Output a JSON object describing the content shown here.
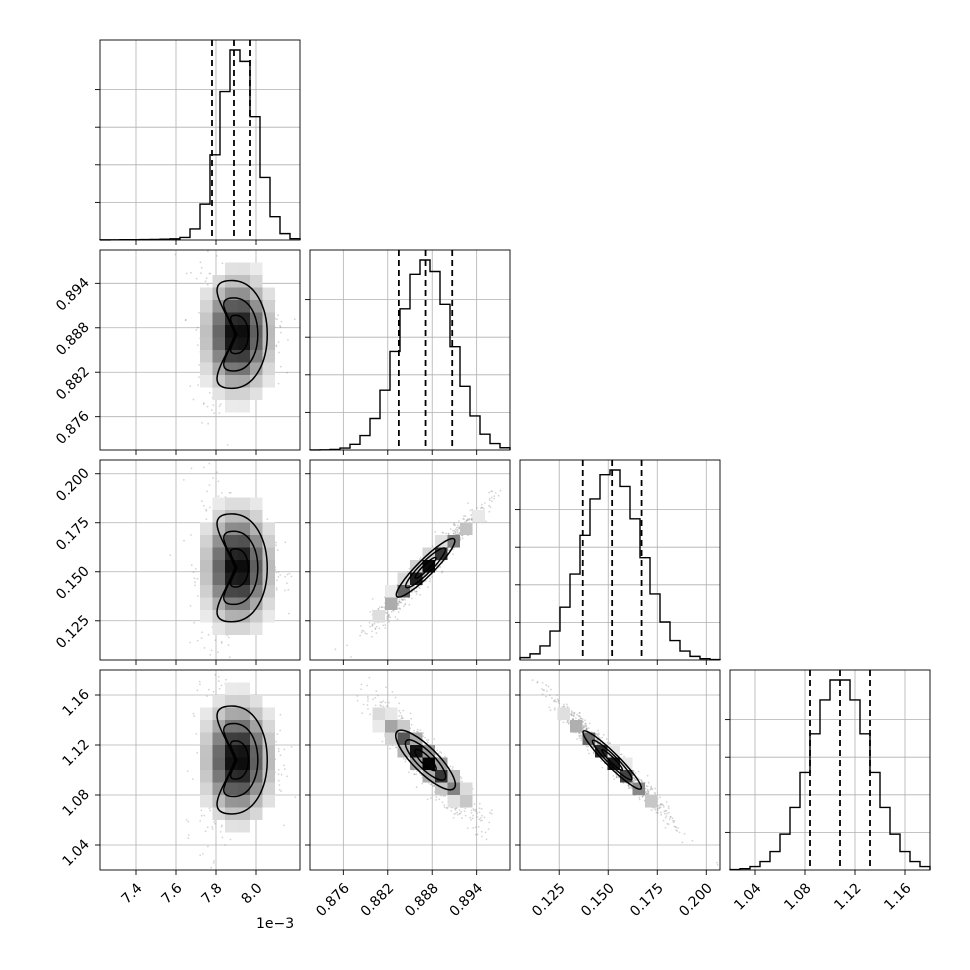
{
  "chart_data": {
    "type": "corner",
    "x_offset_label": "1e−3",
    "parameters": [
      {
        "index": 0,
        "range": [
          7.22,
          8.22
        ],
        "ticks": [
          7.4,
          7.6,
          7.8,
          8.0
        ],
        "tick_labels": [
          "7.4",
          "7.6",
          "7.8",
          "8.0"
        ],
        "quantiles": [
          7.78,
          7.89,
          7.97
        ],
        "mean": 7.91,
        "sd": 0.09,
        "skew": -5
      },
      {
        "index": 1,
        "range": [
          0.8715,
          0.8985
        ],
        "ticks": [
          0.876,
          0.882,
          0.888,
          0.894
        ],
        "tick_labels": [
          "0.876",
          "0.882",
          "0.888",
          "0.894"
        ],
        "quantiles": [
          0.8835,
          0.8871,
          0.8907
        ],
        "mean": 0.8871,
        "sd": 0.0036,
        "skew": 0
      },
      {
        "index": 2,
        "range": [
          0.105,
          0.207
        ],
        "ticks": [
          0.125,
          0.15,
          0.175,
          0.2
        ],
        "tick_labels": [
          "0.125",
          "0.150",
          "0.175",
          "0.200"
        ],
        "quantiles": [
          0.137,
          0.152,
          0.167
        ],
        "mean": 0.152,
        "sd": 0.015,
        "skew": 0
      },
      {
        "index": 3,
        "range": [
          1.02,
          1.18
        ],
        "ticks": [
          1.04,
          1.08,
          1.12,
          1.16
        ],
        "tick_labels": [
          "1.04",
          "1.08",
          "1.12",
          "1.16"
        ],
        "quantiles": [
          1.084,
          1.108,
          1.132
        ],
        "mean": 1.108,
        "sd": 0.024,
        "skew": 0
      }
    ],
    "pairs": [
      {
        "x": 0,
        "y": 1,
        "shape": "crescent",
        "dir": 1
      },
      {
        "x": 0,
        "y": 2,
        "shape": "crescent",
        "dir": -1
      },
      {
        "x": 1,
        "y": 2,
        "shape": "linear",
        "rho": 0.97
      },
      {
        "x": 0,
        "y": 3,
        "shape": "crescent",
        "dir": -1
      },
      {
        "x": 1,
        "y": 3,
        "shape": "linear",
        "rho": -0.93
      },
      {
        "x": 2,
        "y": 3,
        "shape": "linear",
        "rho": -0.98
      }
    ],
    "hist_bins": 20,
    "grid": true
  }
}
